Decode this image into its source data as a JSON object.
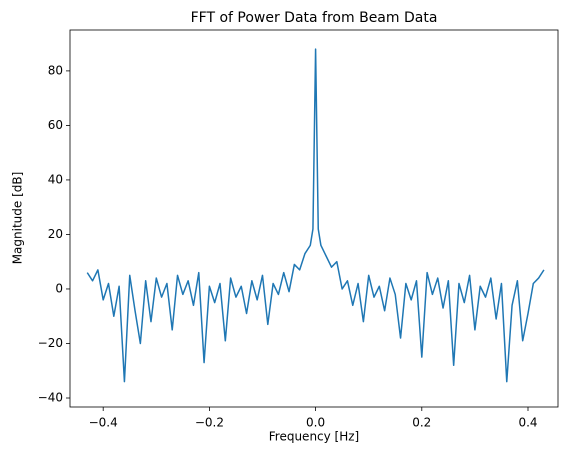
{
  "chart_data": {
    "type": "line",
    "title": "FFT of Power Data from Beam Data",
    "xlabel": "Frequency [Hz]",
    "ylabel": "Magnitude [dB]",
    "x": [
      -0.43,
      -0.42,
      -0.41,
      -0.4,
      -0.39,
      -0.38,
      -0.37,
      -0.36,
      -0.35,
      -0.34,
      -0.33,
      -0.32,
      -0.31,
      -0.3,
      -0.29,
      -0.28,
      -0.27,
      -0.26,
      -0.25,
      -0.24,
      -0.23,
      -0.22,
      -0.21,
      -0.2,
      -0.19,
      -0.18,
      -0.17,
      -0.16,
      -0.15,
      -0.14,
      -0.13,
      -0.12,
      -0.11,
      -0.1,
      -0.09,
      -0.08,
      -0.07,
      -0.06,
      -0.05,
      -0.04,
      -0.03,
      -0.02,
      -0.01,
      -0.005,
      0,
      0.005,
      0.01,
      0.02,
      0.03,
      0.04,
      0.05,
      0.06,
      0.07,
      0.08,
      0.09,
      0.1,
      0.11,
      0.12,
      0.13,
      0.14,
      0.15,
      0.16,
      0.17,
      0.18,
      0.19,
      0.2,
      0.21,
      0.22,
      0.23,
      0.24,
      0.25,
      0.26,
      0.27,
      0.28,
      0.29,
      0.3,
      0.31,
      0.32,
      0.33,
      0.34,
      0.35,
      0.36,
      0.37,
      0.38,
      0.39,
      0.4,
      0.41,
      0.42,
      0.43
    ],
    "values": [
      6,
      3,
      7,
      -4,
      2,
      -10,
      1,
      -34,
      5,
      -8,
      -20,
      3,
      -12,
      4,
      -3,
      2,
      -15,
      5,
      -2,
      3,
      -6,
      6,
      -27,
      1,
      -5,
      2,
      -19,
      4,
      -3,
      1,
      -9,
      3,
      -4,
      5,
      -13,
      2,
      -2,
      6,
      -1,
      9,
      7,
      13,
      16,
      22,
      88,
      22,
      16,
      12,
      8,
      10,
      0,
      3,
      -6,
      2,
      -12,
      5,
      -3,
      1,
      -8,
      4,
      -2,
      -18,
      2,
      -4,
      3,
      -25,
      6,
      -2,
      4,
      -7,
      3,
      -28,
      2,
      -5,
      5,
      -15,
      1,
      -3,
      4,
      -11,
      2,
      -34,
      -6,
      3,
      -19,
      -9,
      2,
      4,
      7
    ],
    "color": "#1f77b4",
    "xlim": [
      -0.4625,
      0.4565
    ],
    "xticks": [
      {
        "value": -0.4,
        "label": "−0.4"
      },
      {
        "value": -0.2,
        "label": "−0.2"
      },
      {
        "value": 0,
        "label": "0.0"
      },
      0.2,
      0.4
    ],
    "ylim": [
      -43.3,
      95
    ],
    "yticks": [
      {
        "value": -40,
        "label": "−40"
      },
      {
        "value": -20,
        "label": "−20"
      },
      0,
      20,
      40,
      60,
      80
    ],
    "grid": false
  }
}
